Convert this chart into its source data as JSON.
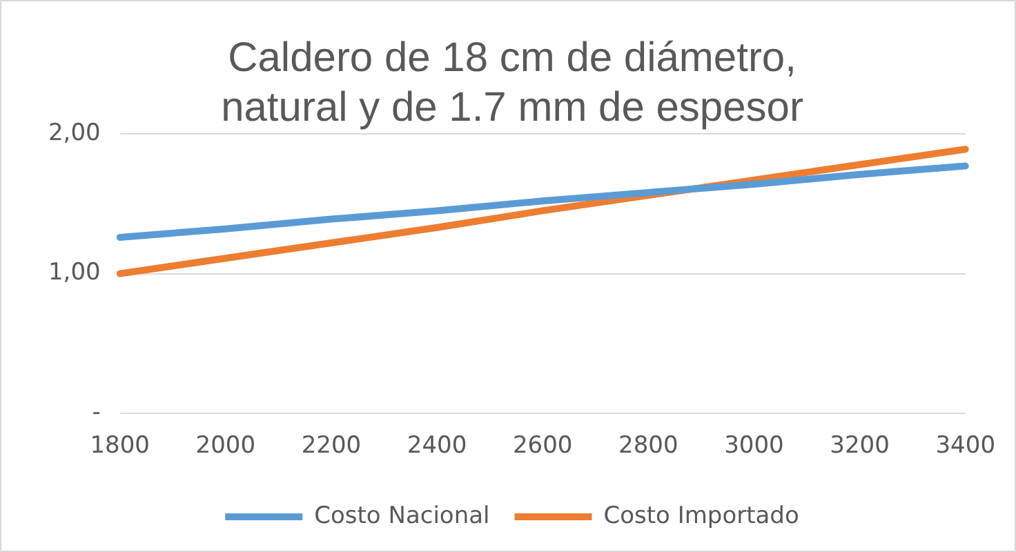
{
  "chart_data": {
    "type": "line",
    "title": [
      "Caldero de 18 cm de diámetro,",
      "natural y de 1.7 mm de espesor"
    ],
    "categories": [
      "1800",
      "2000",
      "2200",
      "2400",
      "2600",
      "2800",
      "3000",
      "3200",
      "3400"
    ],
    "series": [
      {
        "name": "Costo Nacional",
        "color": "#5b9bd5",
        "values": [
          1.26,
          1.32,
          1.39,
          1.45,
          1.52,
          1.58,
          1.64,
          1.71,
          1.77
        ]
      },
      {
        "name": "Costo Importado",
        "color": "#ed7d31",
        "values": [
          1.0,
          1.11,
          1.22,
          1.33,
          1.45,
          1.56,
          1.67,
          1.78,
          1.89
        ]
      }
    ],
    "ylim": [
      0,
      2
    ],
    "yticks": [
      {
        "value": 0,
        "label": "-"
      },
      {
        "value": 1,
        "label": "1,00"
      },
      {
        "value": 2,
        "label": "2,00"
      }
    ],
    "grid": "y",
    "legend": "bottom",
    "marker": "none",
    "line_style": "solid"
  }
}
